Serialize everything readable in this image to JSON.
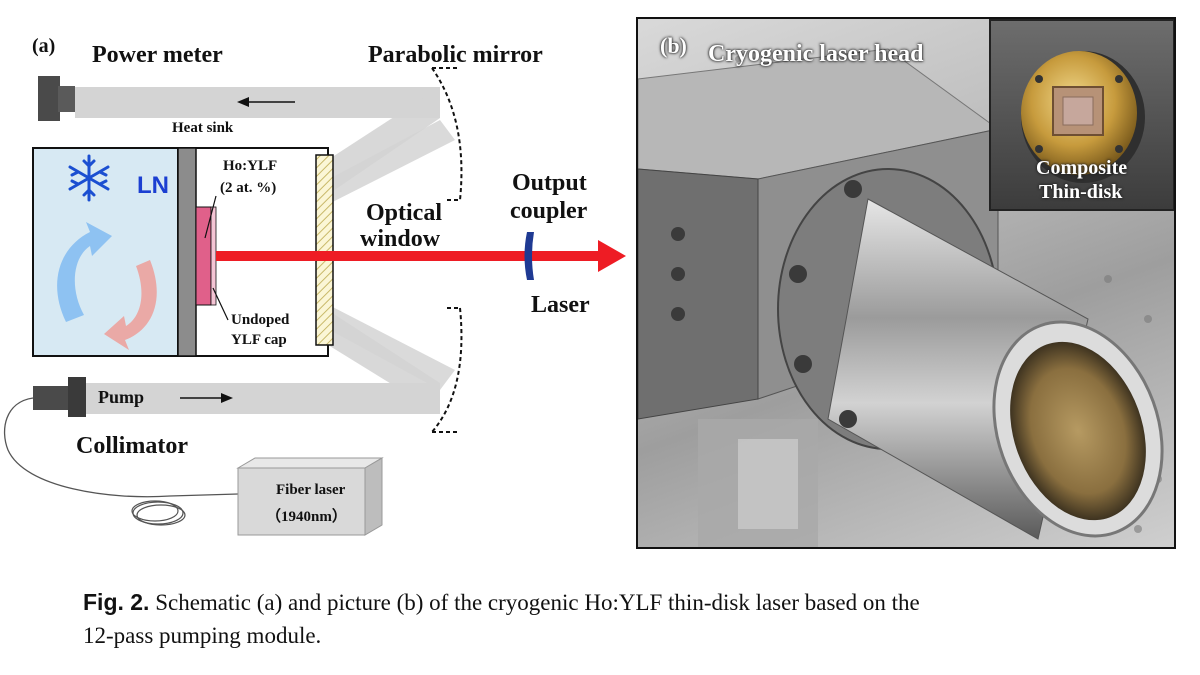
{
  "panel_a": {
    "tag": "(a)",
    "power_meter": "Power meter",
    "parabolic_mirror": "Parabolic mirror",
    "heat_sink": "Heat sink",
    "ln": "LN",
    "crystal_line1": "Ho:YLF",
    "crystal_line2": "(2 at. %)",
    "optical_window_line1": "Optical",
    "optical_window_line2": "window",
    "output_coupler_line1": "Output",
    "output_coupler_line2": "coupler",
    "laser": "Laser",
    "cap_line1": "Undoped",
    "cap_line2": "YLF cap",
    "pump": "Pump",
    "collimator": "Collimator",
    "fiber_laser_line1": "Fiber laser",
    "fiber_laser_line2": "（1940nm）",
    "colors": {
      "laser_beam": "#ee1c24",
      "ln_bath": "#d7e9f3",
      "snowflake": "#1b4fd1",
      "cool_arrow": "#8ec2f2",
      "warm_arrow": "#eaa9a6",
      "crystal": "#e0608a",
      "beam_path": "#d4d4d4",
      "coupler": "#1f3a93"
    }
  },
  "panel_b": {
    "tag": "(b)",
    "title": "Cryogenic laser head",
    "inset_line1": "Composite",
    "inset_line2": "Thin-disk"
  },
  "caption": {
    "fig_label": "Fig. 2.",
    "text_line1": "Schematic (a) and picture (b) of the cryogenic Ho:YLF thin-disk laser based on the",
    "text_line2": "12-pass pumping module."
  }
}
